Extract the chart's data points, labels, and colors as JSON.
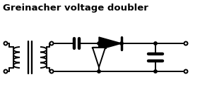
{
  "title": "Greinacher voltage doubler",
  "title_fontsize": 9.5,
  "title_fontweight": "bold",
  "bg_color": "#ffffff",
  "line_color": "#000000",
  "line_width": 1.4,
  "fig_width": 3.0,
  "fig_height": 1.3,
  "dpi": 100
}
